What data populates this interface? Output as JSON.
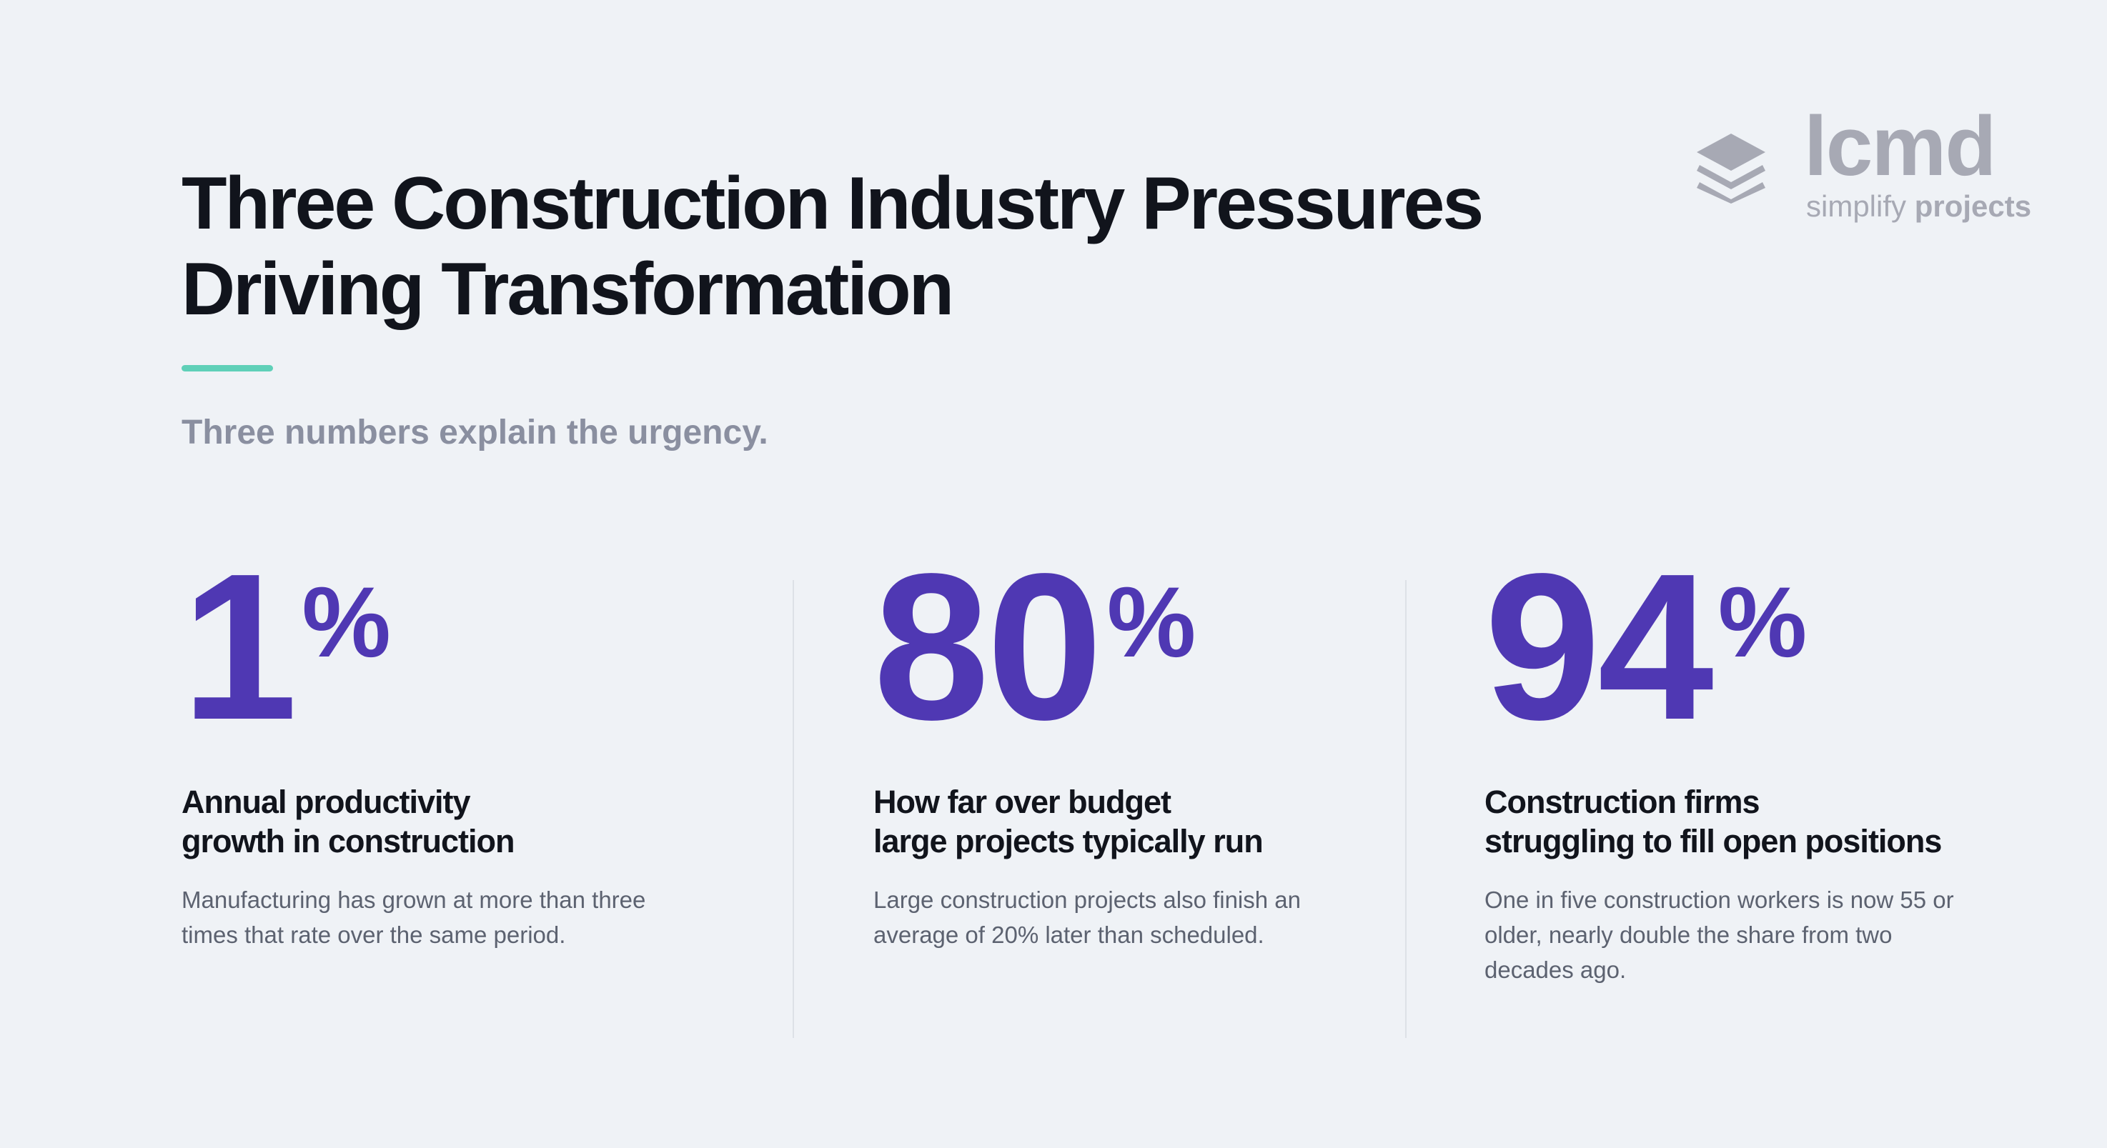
{
  "header": {
    "title_lines": [
      "Three Construction Industry Pressures",
      "Driving Transformation"
    ],
    "subtitle": "Three numbers explain the urgency."
  },
  "logo": {
    "name": "lcmd",
    "tagline_light": "simplify",
    "tagline_bold": "projects"
  },
  "stats": [
    {
      "number": 1,
      "unit": "%",
      "heading_lines": [
        "Annual productivity",
        "growth in construction"
      ],
      "description": "Manufacturing has grown at more than three times that rate over the same period."
    },
    {
      "number": 80,
      "unit": "%",
      "heading_lines": [
        "How far over budget",
        "large projects typically run"
      ],
      "description": "Large construction projects also finish an average of 20% later than scheduled."
    },
    {
      "number": 94,
      "unit": "%",
      "heading_lines": [
        "Construction firms",
        "struggling to fill open positions"
      ],
      "description": "One in five construction workers is now 55 or older, nearly double the share from two decades ago."
    }
  ]
}
